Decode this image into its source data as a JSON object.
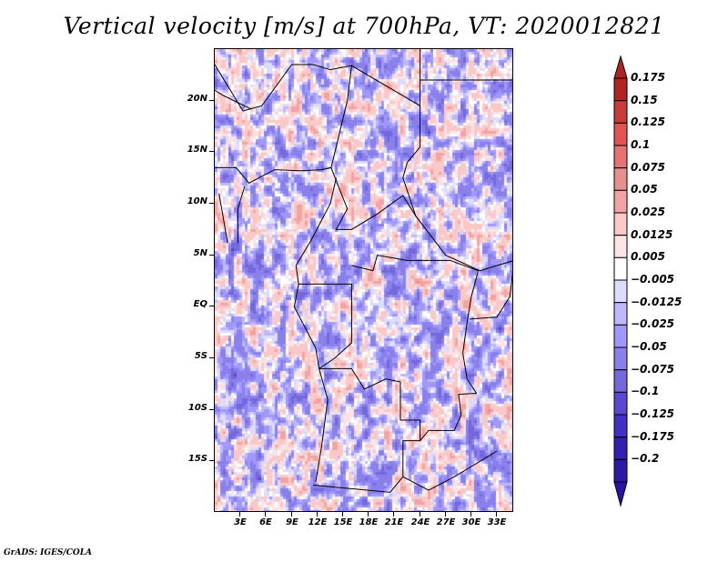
{
  "title": "Vertical velocity [m/s] at 700hPa, VT: 2020012821",
  "credit": "GrADS: IGES/COLA",
  "chart_data": {
    "type": "heatmap",
    "title": "Vertical velocity [m/s] at 700hPa, VT: 2020012821",
    "variable": "Vertical velocity",
    "units": "m/s",
    "level": "700hPa",
    "valid_time": "2020012821",
    "xlabel": "",
    "ylabel": "",
    "lon_range": [
      0,
      35
    ],
    "lat_range": [
      -20,
      25
    ],
    "x_ticks": [
      {
        "value": 3,
        "label": "3E"
      },
      {
        "value": 6,
        "label": "6E"
      },
      {
        "value": 9,
        "label": "9E"
      },
      {
        "value": 12,
        "label": "12E"
      },
      {
        "value": 15,
        "label": "15E"
      },
      {
        "value": 18,
        "label": "18E"
      },
      {
        "value": 21,
        "label": "21E"
      },
      {
        "value": 24,
        "label": "24E"
      },
      {
        "value": 27,
        "label": "27E"
      },
      {
        "value": 30,
        "label": "30E"
      },
      {
        "value": 33,
        "label": "33E"
      }
    ],
    "y_ticks": [
      {
        "value": 20,
        "label": "20N"
      },
      {
        "value": 15,
        "label": "15N"
      },
      {
        "value": 10,
        "label": "10N"
      },
      {
        "value": 5,
        "label": "5N"
      },
      {
        "value": 0,
        "label": "EQ"
      },
      {
        "value": -5,
        "label": "5S"
      },
      {
        "value": -10,
        "label": "10S"
      },
      {
        "value": -15,
        "label": "15S"
      }
    ],
    "colorbar": {
      "orientation": "vertical",
      "placement": "right",
      "extend": "both",
      "levels": [
        "0.175",
        "0.15",
        "0.125",
        "0.1",
        "0.075",
        "0.05",
        "0.025",
        "0.0125",
        "0.005",
        "-0.005",
        "-0.0125",
        "-0.025",
        "-0.05",
        "-0.075",
        "-0.1",
        "-0.125",
        "-0.175",
        "-0.2"
      ],
      "colors": [
        "#b12424",
        "#c83a3a",
        "#e45454",
        "#e57373",
        "#e68f8f",
        "#f4a3a3",
        "#fbc8c8",
        "#fde3e3",
        "#ffffff",
        "#dcdcfc",
        "#c0b8fc",
        "#a098fc",
        "#8a80ec",
        "#7468dc",
        "#5848d4",
        "#4030c4",
        "#3420b0",
        "#2c1aa4"
      ],
      "top_arrow_color": "#b12424",
      "bottom_arrow_color": "#2c10a8"
    },
    "notes": "Gridded field over Central/West Africa with country borders; values mostly between -0.075 and 0.075 m/s, local maxima near 0.15-0.175 m/s"
  }
}
